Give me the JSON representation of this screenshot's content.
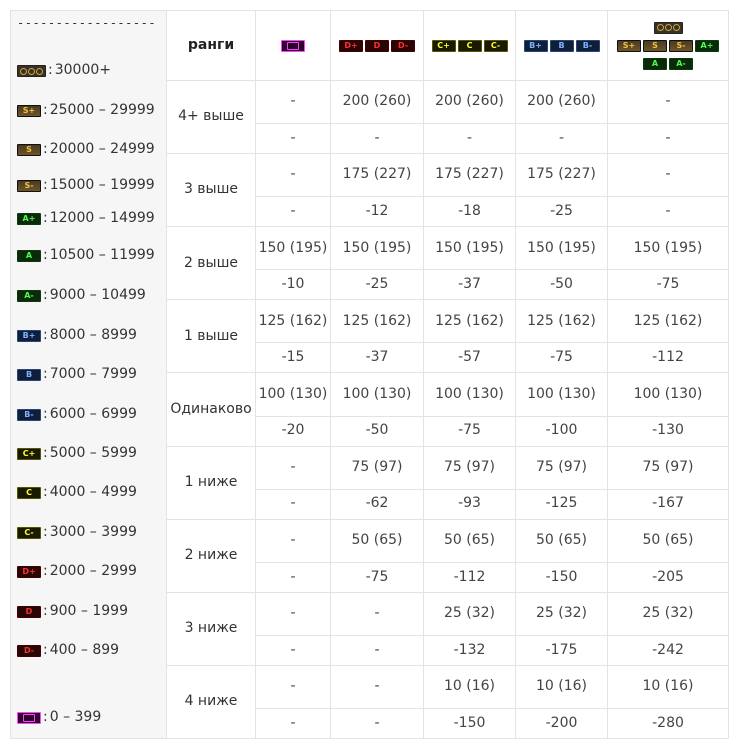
{
  "legend": {
    "dashes": "------------------",
    "items": [
      {
        "badge": "olymp",
        "style": "olymp",
        "range": "30000+"
      },
      {
        "badge": "S+",
        "style": "gold",
        "range": "25000  – 29999"
      },
      {
        "badge": "S",
        "style": "gold",
        "range": "20000  – 24999"
      },
      {
        "badge": "S-",
        "style": "gold",
        "range": "15000  – 19999"
      },
      {
        "badge": "A+",
        "style": "green",
        "range": "12000 – 14999"
      },
      {
        "badge": "A",
        "style": "green",
        "range": "10500 – 11999"
      },
      {
        "badge": "A-",
        "style": "green",
        "range": "9000 – 10499"
      },
      {
        "badge": "B+",
        "style": "blue",
        "range": "8000 – 8999"
      },
      {
        "badge": "B",
        "style": "blue",
        "range": "7000 – 7999"
      },
      {
        "badge": "B-",
        "style": "blue",
        "range": "6000 – 6999"
      },
      {
        "badge": "C+",
        "style": "yellow",
        "range": "5000 – 5999"
      },
      {
        "badge": "C",
        "style": "yellow",
        "range": "4000 – 4999"
      },
      {
        "badge": "C-",
        "style": "yellow",
        "range": "3000 – 3999"
      },
      {
        "badge": "D+",
        "style": "red",
        "range": "2000 – 2999"
      },
      {
        "badge": "D",
        "style": "red",
        "range": "900 – 1999"
      },
      {
        "badge": "D-",
        "style": "red",
        "range": "400 – 899"
      },
      {
        "badge": "newbie",
        "style": "pink",
        "range": "0 – 399"
      }
    ]
  },
  "header": {
    "label": "ранги",
    "columns": [
      {
        "badges": [
          {
            "text": "newbie",
            "style": "pink"
          }
        ]
      },
      {
        "badges": [
          {
            "text": "D+",
            "style": "red"
          },
          {
            "text": "D",
            "style": "red"
          },
          {
            "text": "D-",
            "style": "red"
          }
        ]
      },
      {
        "badges": [
          {
            "text": "C+",
            "style": "yellow"
          },
          {
            "text": "C",
            "style": "yellow"
          },
          {
            "text": "C-",
            "style": "yellow"
          }
        ]
      },
      {
        "badges": [
          {
            "text": "B+",
            "style": "blue"
          },
          {
            "text": "B",
            "style": "blue"
          },
          {
            "text": "B-",
            "style": "blue"
          }
        ]
      },
      {
        "badges": [
          {
            "text": "olymp",
            "style": "olymp"
          },
          {
            "text": "S+",
            "style": "gold"
          },
          {
            "text": "S",
            "style": "gold"
          },
          {
            "text": "S-",
            "style": "gold"
          },
          {
            "text": "A+",
            "style": "green"
          },
          {
            "text": "A",
            "style": "green"
          },
          {
            "text": "A-",
            "style": "green"
          }
        ]
      }
    ]
  },
  "groups": [
    {
      "label": "4+ выше",
      "win": [
        "-",
        "200 (260)",
        "200 (260)",
        "200 (260)",
        "-"
      ],
      "loss": [
        "-",
        "-",
        "-",
        "-",
        "-"
      ]
    },
    {
      "label": "3 выше",
      "win": [
        "-",
        "175 (227)",
        "175 (227)",
        "175 (227)",
        "-"
      ],
      "loss": [
        "-",
        "-12",
        "-18",
        "-25",
        "-"
      ]
    },
    {
      "label": "2 выше",
      "win": [
        "150 (195)",
        "150 (195)",
        "150 (195)",
        "150 (195)",
        "150 (195)"
      ],
      "loss": [
        "-10",
        "-25",
        "-37",
        "-50",
        "-75"
      ]
    },
    {
      "label": "1 выше",
      "win": [
        "125 (162)",
        "125 (162)",
        "125 (162)",
        "125 (162)",
        "125 (162)"
      ],
      "loss": [
        "-15",
        "-37",
        "-57",
        "-75",
        "-112"
      ]
    },
    {
      "label": "Одинаково",
      "win": [
        "100 (130)",
        "100 (130)",
        "100 (130)",
        "100 (130)",
        "100 (130)"
      ],
      "loss": [
        "-20",
        "-50",
        "-75",
        "-100",
        "-130"
      ]
    },
    {
      "label": "1 ниже",
      "win": [
        "-",
        "75 (97)",
        "75 (97)",
        "75 (97)",
        "75 (97)"
      ],
      "loss": [
        "-",
        "-62",
        "-93",
        "-125",
        "-167"
      ]
    },
    {
      "label": "2 ниже",
      "win": [
        "-",
        "50 (65)",
        "50 (65)",
        "50 (65)",
        "50 (65)"
      ],
      "loss": [
        "-",
        "-75",
        "-112",
        "-150",
        "-205"
      ]
    },
    {
      "label": "3 ниже",
      "win": [
        "-",
        "-",
        "25 (32)",
        "25 (32)",
        "25 (32)"
      ],
      "loss": [
        "-",
        "-",
        "-132",
        "-175",
        "-242"
      ]
    },
    {
      "label": "4 ниже",
      "win": [
        "-",
        "-",
        "10 (16)",
        "10 (16)",
        "10 (16)"
      ],
      "loss": [
        "-",
        "-",
        "-150",
        "-200",
        "-280"
      ]
    }
  ]
}
